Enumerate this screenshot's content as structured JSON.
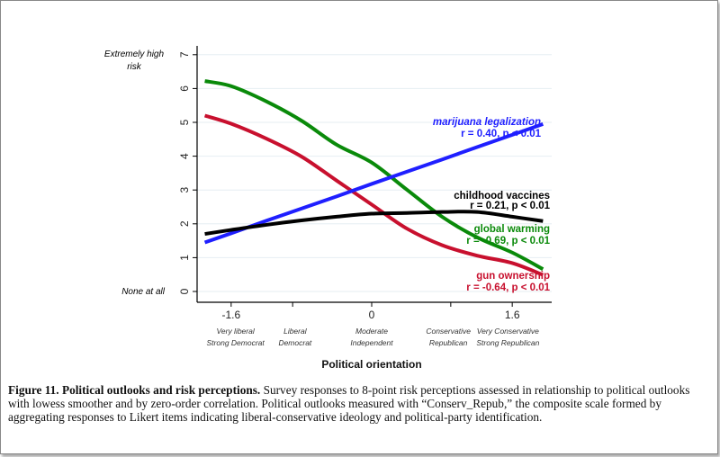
{
  "chart_data": {
    "type": "line",
    "xlabel": "Political orientation",
    "ylabel": "",
    "xlim": [
      -1.99,
      2.05
    ],
    "ylim": [
      0,
      7
    ],
    "grid": true,
    "x_ticks": [
      {
        "value": -1.6,
        "label": "-1.6"
      },
      {
        "value": -0.9,
        "label": ""
      },
      {
        "value": 0,
        "label": "0"
      },
      {
        "value": 0.9,
        "label": ""
      },
      {
        "value": 1.6,
        "label": "1.6"
      }
    ],
    "x_category_labels": [
      {
        "value": -1.6,
        "line1": "Very liberal",
        "line2": "Strong Democrat"
      },
      {
        "value": -0.9,
        "line1": "Liberal",
        "line2": "Democrat"
      },
      {
        "value": 0,
        "line1": "Moderate",
        "line2": "Independent"
      },
      {
        "value": 0.9,
        "line1": "Conservative",
        "line2": "Republican"
      },
      {
        "value": 1.6,
        "line1": "Very Conservative",
        "line2": "Strong Republican"
      }
    ],
    "y_ticks": [
      0,
      1,
      2,
      3,
      4,
      5,
      6,
      7
    ],
    "y_annotations": [
      {
        "value": 7,
        "line1": "Extremely high",
        "line2": "risk"
      },
      {
        "value": 0,
        "line1": "None at all",
        "line2": ""
      }
    ],
    "x": [
      -1.9,
      -1.6,
      -1.2,
      -0.8,
      -0.4,
      0,
      0.4,
      0.8,
      1.2,
      1.6,
      1.95
    ],
    "series": [
      {
        "name": "marijuana legalization",
        "stat": "r = 0.40, p < 0.01",
        "color": "#1f1fff",
        "values": [
          1.45,
          1.72,
          2.09,
          2.45,
          2.81,
          3.18,
          3.54,
          3.9,
          4.27,
          4.63,
          4.95
        ]
      },
      {
        "name": "childhood vaccines",
        "stat": "r = 0.21, p < 0.01",
        "color": "#000000",
        "values": [
          1.7,
          1.82,
          1.97,
          2.1,
          2.21,
          2.3,
          2.32,
          2.35,
          2.35,
          2.21,
          2.08
        ]
      },
      {
        "name": "global warming",
        "stat": "r = -0.69, p < 0.01",
        "color": "#0a8a0a",
        "values": [
          6.22,
          6.07,
          5.62,
          5.05,
          4.34,
          3.81,
          3.01,
          2.21,
          1.6,
          1.15,
          0.66
        ]
      },
      {
        "name": "gun ownership",
        "stat": "r = -0.64, p < 0.01",
        "color": "#c8102e",
        "values": [
          5.2,
          4.96,
          4.52,
          3.99,
          3.28,
          2.57,
          1.86,
          1.37,
          1.06,
          0.84,
          0.49
        ]
      }
    ]
  },
  "caption": {
    "bold": "Figure 11. Political outlooks and risk perceptions.",
    "text": " Survey responses to 8-point risk perceptions assessed in relationship to political outlooks with lowess smoother and by zero-order correlation. Political outlooks measured with “Conserv_Repub,” the composite scale formed by aggregating responses to Likert items indicating liberal-conservative ideology and political-party identification."
  }
}
